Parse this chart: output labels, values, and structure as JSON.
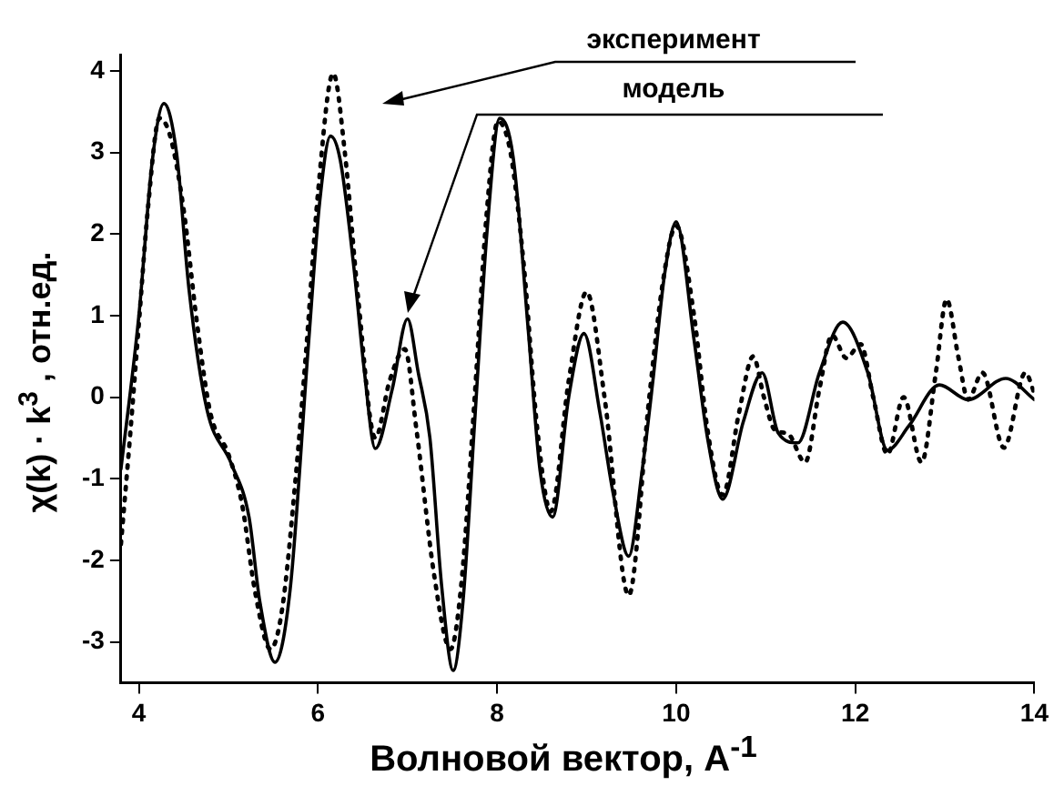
{
  "chart_data": {
    "type": "line",
    "xlabel": "Волновой вектор, A$^{-1}$",
    "ylabel": "χ(k) · k$^{3}$ ,  отн.ед.",
    "xlim": [
      3.8,
      14
    ],
    "xticks": [
      4,
      6,
      8,
      10,
      12,
      14
    ],
    "ylim": [
      -3.5,
      4.2
    ],
    "yticks": [
      -3,
      -2,
      -1,
      0,
      1,
      2,
      3,
      4
    ],
    "grid": false,
    "legend": false,
    "marker": "none",
    "annotations": [
      "эксперимент",
      "модель"
    ],
    "series": [
      {
        "color": "#000000",
        "line_style": "dotted",
        "x": [
          3.8,
          3.9,
          4.0,
          4.1,
          4.23,
          4.35,
          4.5,
          4.65,
          4.8,
          5.0,
          5.15,
          5.3,
          5.47,
          5.6,
          5.75,
          5.87,
          6.0,
          6.17,
          6.3,
          6.45,
          6.64,
          6.8,
          6.97,
          7.1,
          7.3,
          7.48,
          7.6,
          7.75,
          7.88,
          8.01,
          8.15,
          8.3,
          8.45,
          8.6,
          8.8,
          9.0,
          9.2,
          9.47,
          9.7,
          9.85,
          10.0,
          10.2,
          10.35,
          10.52,
          10.7,
          10.86,
          10.98,
          11.1,
          11.25,
          11.44,
          11.6,
          11.74,
          11.9,
          12.06,
          12.2,
          12.36,
          12.54,
          12.74,
          12.9,
          13.02,
          13.15,
          13.26,
          13.42,
          13.66,
          13.9,
          14.0
        ],
        "values": [
          -1.8,
          -0.5,
          0.9,
          2.3,
          3.42,
          3.2,
          2.3,
          0.9,
          -0.2,
          -0.7,
          -1.3,
          -2.4,
          -3.09,
          -2.6,
          -1.0,
          0.6,
          2.5,
          3.97,
          3.0,
          1.2,
          -0.5,
          0.2,
          0.59,
          -0.4,
          -2.2,
          -3.09,
          -2.3,
          0.0,
          2.2,
          3.38,
          3.0,
          1.6,
          -0.4,
          -1.4,
          0.2,
          1.29,
          0.0,
          -2.43,
          0.0,
          1.4,
          2.1,
          1.0,
          -0.4,
          -1.2,
          -0.2,
          0.5,
          0.0,
          -0.4,
          -0.45,
          -0.8,
          0.1,
          0.76,
          0.48,
          0.65,
          0.0,
          -0.7,
          0.0,
          -0.8,
          0.3,
          1.2,
          0.5,
          -0.03,
          0.3,
          -0.62,
          0.3,
          0.05
        ]
      },
      {
        "color": "#000000",
        "line_style": "solid",
        "x": [
          3.8,
          4.0,
          4.15,
          4.28,
          4.42,
          4.56,
          4.76,
          5.03,
          5.23,
          5.35,
          5.52,
          5.69,
          5.89,
          6.02,
          6.14,
          6.25,
          6.4,
          6.52,
          6.64,
          6.83,
          7.0,
          7.12,
          7.25,
          7.38,
          7.51,
          7.62,
          7.75,
          7.89,
          8.03,
          8.18,
          8.35,
          8.48,
          8.62,
          8.8,
          8.97,
          9.15,
          9.3,
          9.47,
          9.62,
          9.74,
          9.87,
          10.0,
          10.2,
          10.35,
          10.52,
          10.75,
          10.96,
          11.14,
          11.36,
          11.6,
          11.86,
          12.14,
          12.36,
          12.6,
          12.94,
          13.26,
          13.68,
          14.0
        ],
        "values": [
          -0.88,
          1.0,
          2.9,
          3.6,
          3.0,
          1.32,
          -0.15,
          -0.81,
          -1.47,
          -2.5,
          -3.25,
          -2.35,
          0.59,
          2.4,
          3.2,
          2.9,
          1.6,
          0.3,
          -0.63,
          0.1,
          0.96,
          0.3,
          -0.5,
          -2.3,
          -3.35,
          -2.5,
          -0.3,
          2.06,
          3.42,
          2.94,
          0.8,
          -0.9,
          -1.47,
          0.0,
          0.78,
          -0.2,
          -1.2,
          -1.95,
          -0.9,
          0.2,
          1.5,
          2.15,
          0.7,
          -0.5,
          -1.25,
          -0.3,
          0.3,
          -0.44,
          -0.56,
          0.3,
          0.92,
          0.3,
          -0.65,
          -0.35,
          0.15,
          -0.03,
          0.23,
          -0.03
        ]
      }
    ]
  }
}
